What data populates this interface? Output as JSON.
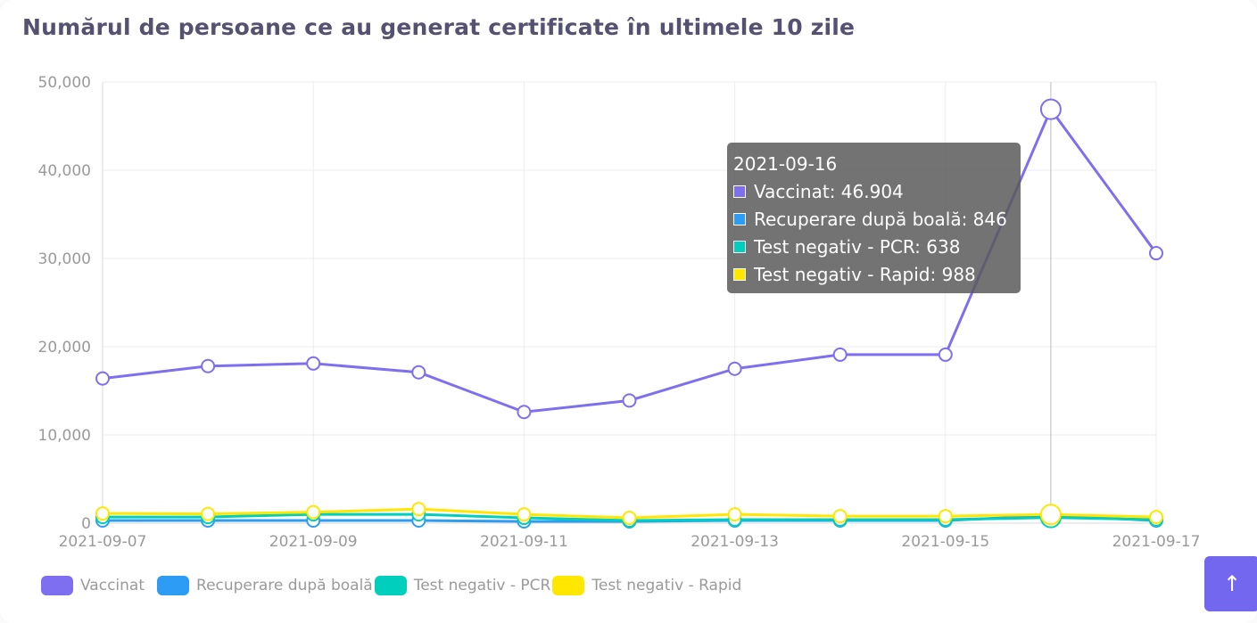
{
  "chart_data": {
    "type": "line",
    "title": "Numărul de persoane ce au generat certificate în ultimele 10 zile",
    "x": [
      "2021-09-07",
      "2021-09-08",
      "2021-09-09",
      "2021-09-10",
      "2021-09-11",
      "2021-09-12",
      "2021-09-13",
      "2021-09-14",
      "2021-09-15",
      "2021-09-16",
      "2021-09-17"
    ],
    "x_tick_labels": [
      "2021-09-07",
      "2021-09-09",
      "2021-09-11",
      "2021-09-13",
      "2021-09-15",
      "2021-09-17"
    ],
    "y_tick_labels": [
      "0",
      "10,000",
      "20,000",
      "30,000",
      "40,000",
      "50,000"
    ],
    "ylim": [
      0,
      50000
    ],
    "grid": true,
    "legend_position": "bottom-left",
    "series": [
      {
        "name": "Vaccinat",
        "color": "#7e6ff0",
        "values": [
          16400,
          17800,
          18100,
          17100,
          12600,
          13900,
          17500,
          19100,
          19100,
          46904,
          30600
        ]
      },
      {
        "name": "Recuperare după boală",
        "color": "#2d9cf5",
        "values": [
          300,
          300,
          300,
          300,
          200,
          200,
          300,
          300,
          300,
          846,
          300
        ]
      },
      {
        "name": "Test negativ - PCR",
        "color": "#00cfbd",
        "values": [
          700,
          700,
          1000,
          1000,
          600,
          300,
          400,
          400,
          400,
          638,
          400
        ]
      },
      {
        "name": "Test negativ - Rapid",
        "color": "#ffe700",
        "values": [
          1100,
          1050,
          1250,
          1600,
          1000,
          600,
          1000,
          800,
          800,
          988,
          700
        ]
      }
    ],
    "tooltip": {
      "title": "2021-09-16",
      "rows": [
        "Vaccinat: 46.904",
        "Recuperare după boală: 846",
        "Test negativ - PCR: 638",
        "Test negativ - Rapid: 988"
      ]
    }
  },
  "back_to_top_icon": "arrow-up-icon",
  "back_to_top_glyph": "↑"
}
